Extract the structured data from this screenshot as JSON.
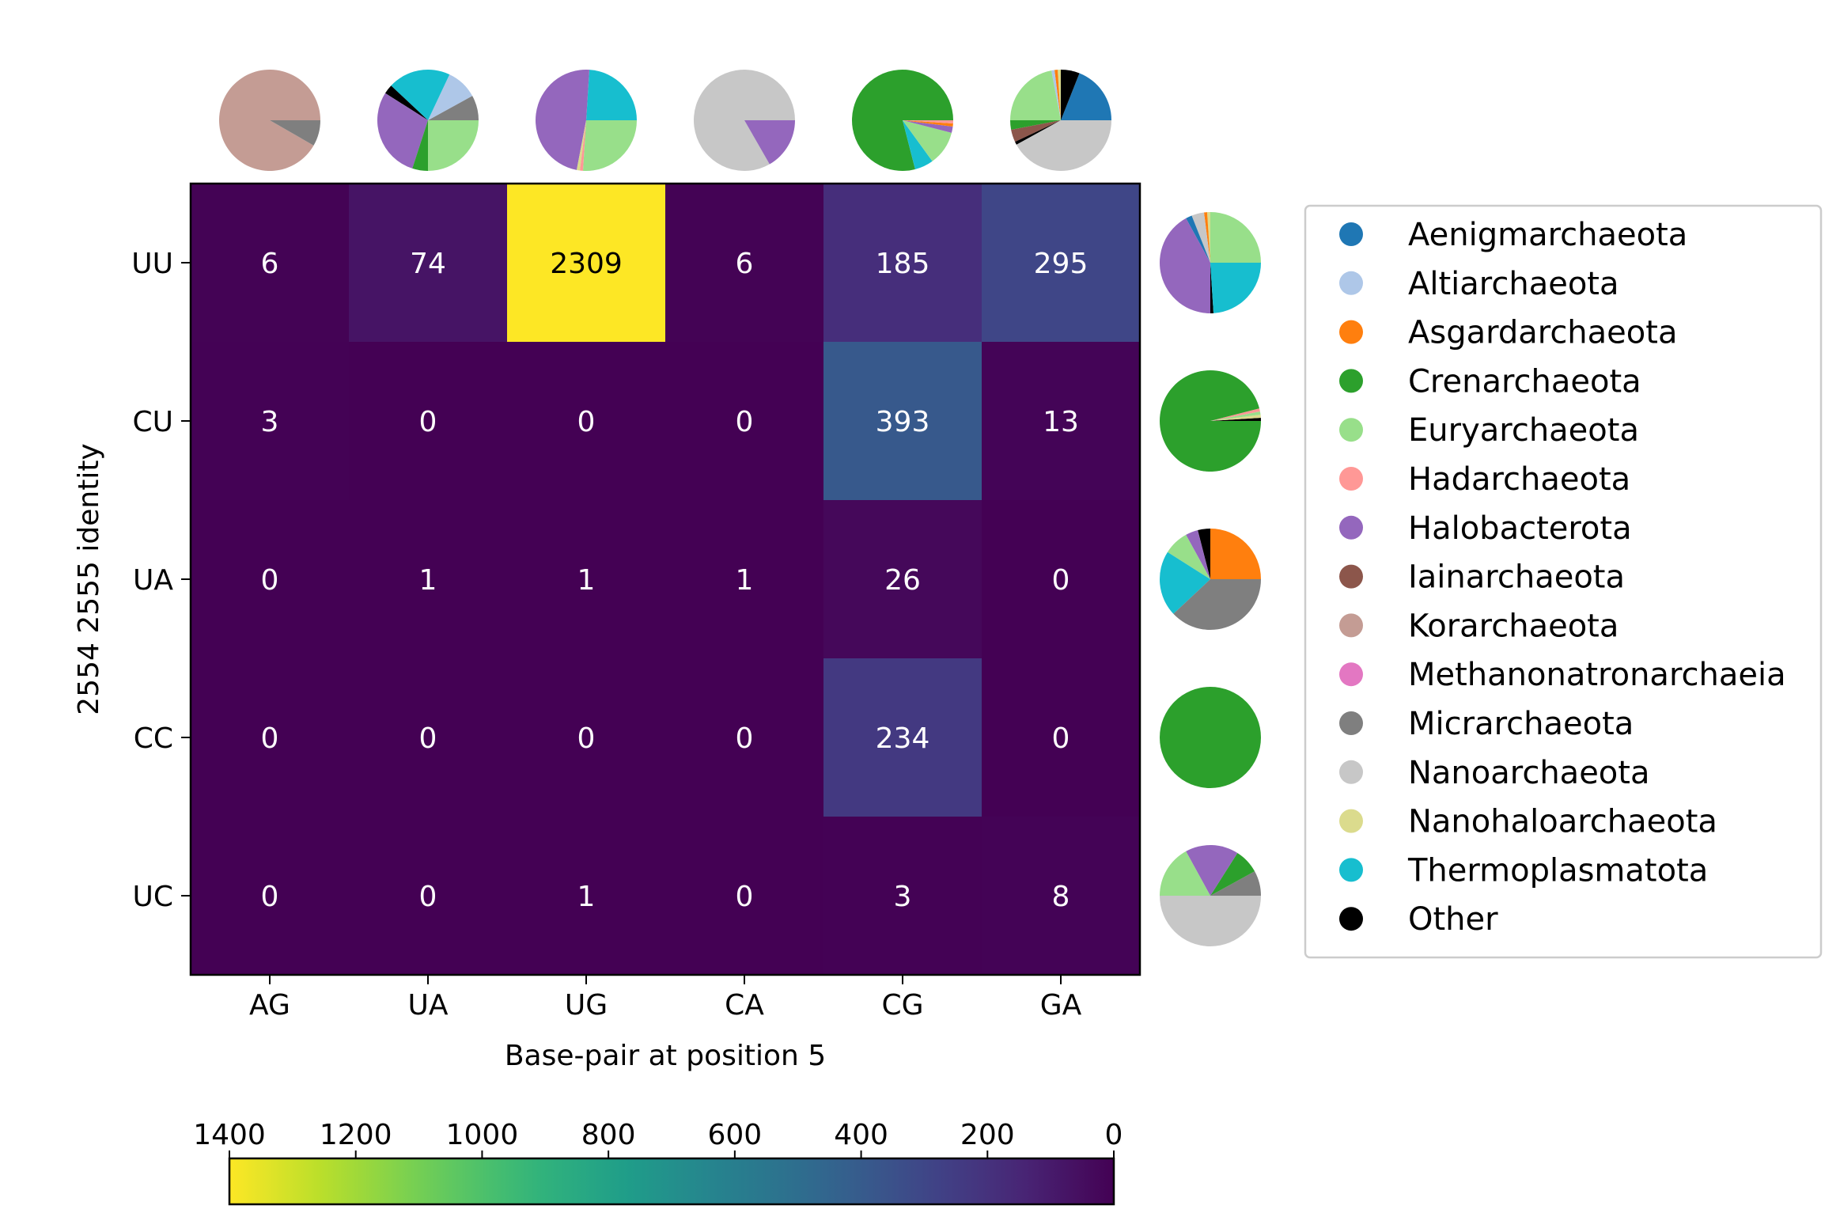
{
  "chart_data": {
    "type": "heatmap",
    "xlabel": "Base-pair at position 5",
    "ylabel": "2554 2555 identity",
    "x_categories": [
      "AG",
      "UA",
      "UG",
      "CA",
      "CG",
      "GA"
    ],
    "y_categories": [
      "UU",
      "CU",
      "UA",
      "CC",
      "UC"
    ],
    "values": [
      [
        6,
        74,
        2309,
        6,
        185,
        295
      ],
      [
        3,
        0,
        0,
        0,
        393,
        13
      ],
      [
        0,
        1,
        1,
        1,
        26,
        0
      ],
      [
        0,
        0,
        0,
        0,
        234,
        0
      ],
      [
        0,
        0,
        1,
        0,
        3,
        8
      ]
    ],
    "colorbar": {
      "colormap": "viridis",
      "range": [
        0,
        1400
      ],
      "direction": "reversed",
      "ticks": [
        "1400",
        "1200",
        "1000",
        "800",
        "600",
        "400",
        "200",
        "0"
      ]
    },
    "legend": {
      "placement": "right",
      "entries": [
        {
          "name": "Aenigmarchaeota",
          "color": "#1f77b4"
        },
        {
          "name": "Altiarchaeota",
          "color": "#aec7e8"
        },
        {
          "name": "Asgardarchaeota",
          "color": "#ff7f0e"
        },
        {
          "name": "Crenarchaeota",
          "color": "#2ca02c"
        },
        {
          "name": "Euryarchaeota",
          "color": "#98df8a"
        },
        {
          "name": "Hadarchaeota",
          "color": "#ff9896"
        },
        {
          "name": "Halobacterota",
          "color": "#9467bd"
        },
        {
          "name": "Iainarchaeota",
          "color": "#8c564b"
        },
        {
          "name": "Korarchaeota",
          "color": "#c49c94"
        },
        {
          "name": "Methanonatronarchaeia",
          "color": "#e377c2"
        },
        {
          "name": "Micrarchaeota",
          "color": "#7f7f7f"
        },
        {
          "name": "Nanoarchaeota",
          "color": "#c7c7c7"
        },
        {
          "name": "Nanohaloarchaeota",
          "color": "#dbdb8d"
        },
        {
          "name": "Thermoplasmatota",
          "color": "#17becf"
        },
        {
          "name": "Other",
          "color": "#000000"
        }
      ]
    },
    "column_pies": [
      {
        "category": "AG",
        "slices": [
          {
            "taxon": "Korarchaeota",
            "value": 0.917
          },
          {
            "taxon": "Micrarchaeota",
            "value": 0.083
          }
        ]
      },
      {
        "category": "UA",
        "slices": [
          {
            "taxon": "Micrarchaeota",
            "value": 0.08
          },
          {
            "taxon": "Altiarchaeota",
            "value": 0.1
          },
          {
            "taxon": "Thermoplasmatota",
            "value": 0.2
          },
          {
            "taxon": "Other",
            "value": 0.03
          },
          {
            "taxon": "Halobacterota",
            "value": 0.29
          },
          {
            "taxon": "Crenarchaeota",
            "value": 0.05
          },
          {
            "taxon": "Euryarchaeota",
            "value": 0.25
          }
        ]
      },
      {
        "category": "UG",
        "slices": [
          {
            "taxon": "Thermoplasmatota",
            "value": 0.24
          },
          {
            "taxon": "Halobacterota",
            "value": 0.48
          },
          {
            "taxon": "Nanohaloarchaeota",
            "value": 0.01
          },
          {
            "taxon": "Hadarchaeota",
            "value": 0.01
          },
          {
            "taxon": "Euryarchaeota",
            "value": 0.26
          }
        ]
      },
      {
        "category": "CA",
        "slices": [
          {
            "taxon": "Nanoarchaeota",
            "value": 0.833
          },
          {
            "taxon": "Halobacterota",
            "value": 0.167
          }
        ]
      },
      {
        "category": "CG",
        "slices": [
          {
            "taxon": "Crenarchaeota",
            "value": 0.79
          },
          {
            "taxon": "Thermoplasmatota",
            "value": 0.06
          },
          {
            "taxon": "Euryarchaeota",
            "value": 0.11
          },
          {
            "taxon": "Halobacterota",
            "value": 0.02
          },
          {
            "taxon": "Asgardarchaeota",
            "value": 0.01
          },
          {
            "taxon": "Hadarchaeota",
            "value": 0.01
          }
        ]
      },
      {
        "category": "GA",
        "slices": [
          {
            "taxon": "Aenigmarchaeota",
            "value": 0.19
          },
          {
            "taxon": "Other",
            "value": 0.06
          },
          {
            "taxon": "Nanohaloarchaeota",
            "value": 0.01
          },
          {
            "taxon": "Asgardarchaeota",
            "value": 0.01
          },
          {
            "taxon": "Altiarchaeota",
            "value": 0.01
          },
          {
            "taxon": "Euryarchaeota",
            "value": 0.22
          },
          {
            "taxon": "Crenarchaeota",
            "value": 0.03
          },
          {
            "taxon": "Iainarchaeota",
            "value": 0.04
          },
          {
            "taxon": "Other",
            "value": 0.01
          },
          {
            "taxon": "Nanoarchaeota",
            "value": 0.42
          }
        ]
      }
    ],
    "row_pies": [
      {
        "category": "UU",
        "slices": [
          {
            "taxon": "Euryarchaeota",
            "value": 0.25
          },
          {
            "taxon": "Nanohaloarchaeota",
            "value": 0.01
          },
          {
            "taxon": "Asgardarchaeota",
            "value": 0.01
          },
          {
            "taxon": "Nanoarchaeota",
            "value": 0.04
          },
          {
            "taxon": "Aenigmarchaeota",
            "value": 0.02
          },
          {
            "taxon": "Halobacterota",
            "value": 0.42
          },
          {
            "taxon": "Other",
            "value": 0.01
          },
          {
            "taxon": "Thermoplasmatota",
            "value": 0.24
          }
        ]
      },
      {
        "category": "CU",
        "slices": [
          {
            "taxon": "Other",
            "value": 0.01
          },
          {
            "taxon": "Nanohaloarchaeota",
            "value": 0.01
          },
          {
            "taxon": "Euryarchaeota",
            "value": 0.01
          },
          {
            "taxon": "Hadarchaeota",
            "value": 0.01
          },
          {
            "taxon": "Crenarchaeota",
            "value": 0.96
          }
        ]
      },
      {
        "category": "UA",
        "slices": [
          {
            "taxon": "Asgardarchaeota",
            "value": 0.25
          },
          {
            "taxon": "Other",
            "value": 0.04
          },
          {
            "taxon": "Halobacterota",
            "value": 0.04
          },
          {
            "taxon": "Euryarchaeota",
            "value": 0.08
          },
          {
            "taxon": "Thermoplasmatota",
            "value": 0.21
          },
          {
            "taxon": "Micrarchaeota",
            "value": 0.38
          }
        ]
      },
      {
        "category": "CC",
        "slices": [
          {
            "taxon": "Crenarchaeota",
            "value": 1.0
          }
        ]
      },
      {
        "category": "UC",
        "slices": [
          {
            "taxon": "Micrarchaeota",
            "value": 0.08
          },
          {
            "taxon": "Crenarchaeota",
            "value": 0.08
          },
          {
            "taxon": "Halobacterota",
            "value": 0.17
          },
          {
            "taxon": "Euryarchaeota",
            "value": 0.17
          },
          {
            "taxon": "Nanoarchaeota",
            "value": 0.5
          }
        ]
      }
    ]
  }
}
